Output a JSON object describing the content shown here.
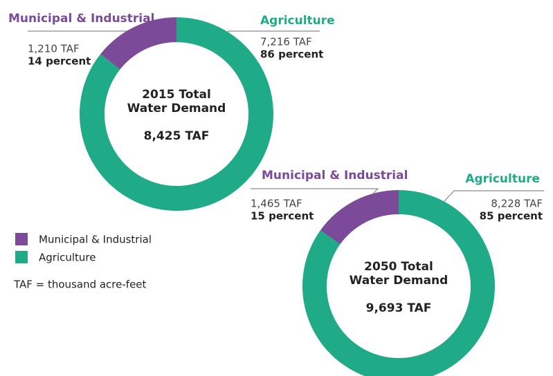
{
  "chart_data": [
    {
      "type": "donut",
      "title": [
        "2015 Total",
        "Water Demand"
      ],
      "total_label": "8,425 TAF",
      "categories": [
        "Municipal & Industrial",
        "Agriculture"
      ],
      "values": [
        1210,
        7216
      ],
      "value_labels": [
        "1,210 TAF",
        "7,216 TAF"
      ],
      "percent_labels": [
        "14 percent",
        "86 percent"
      ],
      "colors": [
        "#7b4a98",
        "#1fab87"
      ]
    },
    {
      "type": "donut",
      "title": [
        "2050 Total",
        "Water Demand"
      ],
      "total_label": "9,693 TAF",
      "categories": [
        "Municipal & Industrial",
        "Agriculture"
      ],
      "values": [
        1465,
        8228
      ],
      "value_labels": [
        "1,465 TAF",
        "8,228 TAF"
      ],
      "percent_labels": [
        "15 percent",
        "85 percent"
      ],
      "colors": [
        "#7b4a98",
        "#1fab87"
      ]
    }
  ],
  "note": "TAF = thousand acre-feet"
}
